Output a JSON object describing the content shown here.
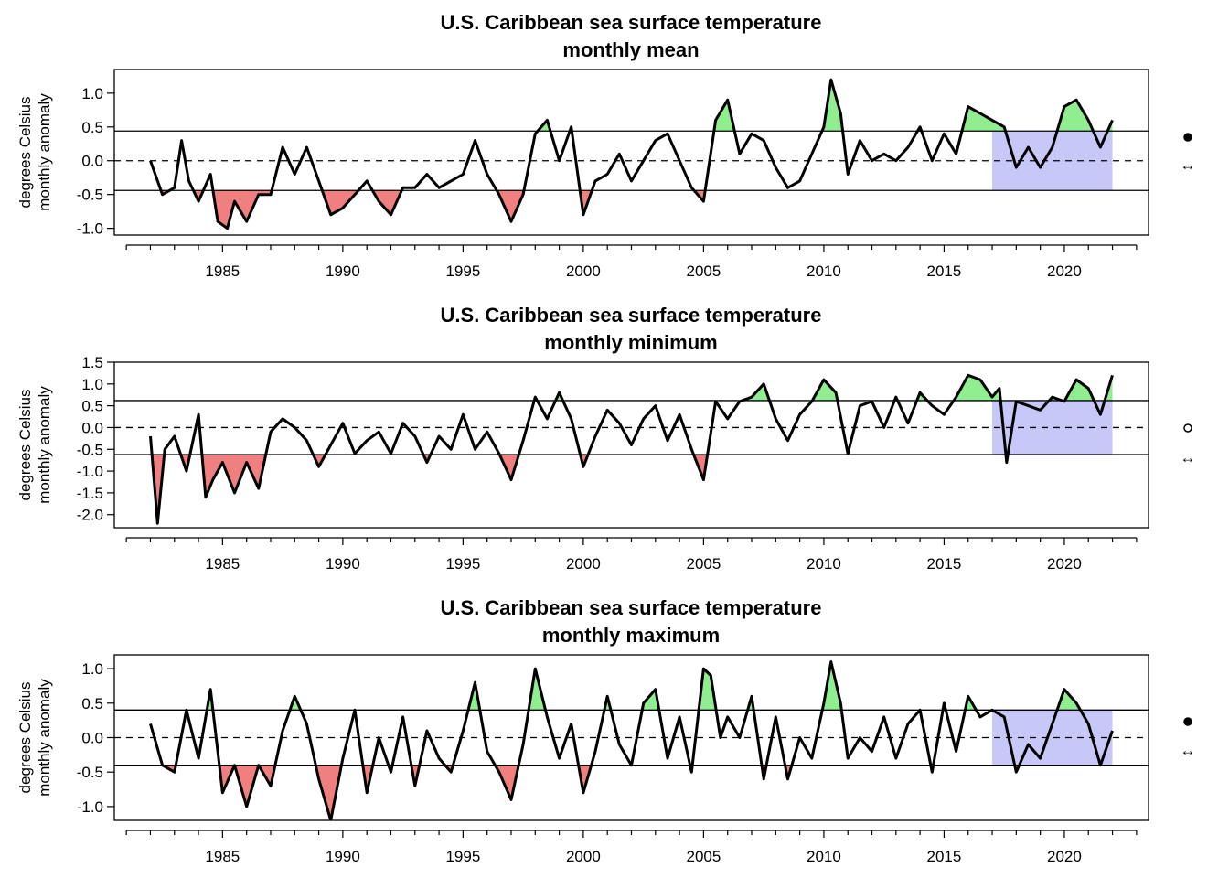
{
  "figure": {
    "panels": [
      {
        "title": "U.S. Caribbean sea surface temperature",
        "subtitle": "monthly mean",
        "ylabel_line1": "degrees Celsius",
        "ylabel_line2": "monthly anomaly",
        "ytick_labels": [
          "1.0",
          "0.5",
          "0.0",
          "-0.5",
          "-1.0"
        ]
      },
      {
        "title": "U.S. Caribbean sea surface temperature",
        "subtitle": "monthly minimum",
        "ylabel_line1": "degrees Celsius",
        "ylabel_line2": "monthly anomaly",
        "ytick_labels": [
          "1.5",
          "1.0",
          "0.5",
          "0.0",
          "-0.5",
          "-1.0",
          "-1.5",
          "-2.0"
        ]
      },
      {
        "title": "U.S. Caribbean sea surface temperature",
        "subtitle": "monthly maximum",
        "ylabel_line1": "degrees Celsius",
        "ylabel_line2": "monthly anomaly",
        "ytick_labels": [
          "1.0",
          "0.5",
          "0.0",
          "-0.5",
          "-1.0"
        ]
      }
    ],
    "xtick_labels": [
      "1985",
      "1990",
      "1995",
      "2000",
      "2005",
      "2010",
      "2015",
      "2020"
    ]
  },
  "colors": {
    "line": "#000000",
    "above_fill": "#90EE90",
    "below_fill": "#F08080",
    "recent_window": "#C8C8F8"
  },
  "chart_data": [
    {
      "type": "line",
      "title": "U.S. Caribbean sea surface temperature",
      "subtitle": "monthly mean",
      "ylabel": "degrees Celsius monthly anomaly",
      "xlim": [
        1980.5,
        2023.5
      ],
      "ylim": [
        -1.1,
        1.35
      ],
      "yticks": [
        1.0,
        0.5,
        0.0,
        -0.5,
        -1.0
      ],
      "xticks": [
        1985,
        1990,
        1995,
        2000,
        2005,
        2010,
        2015,
        2020
      ],
      "reference_lines": {
        "upper": 0.44,
        "mean": 0.0,
        "lower": -0.44
      },
      "recent_window": [
        2017.0,
        2022.0
      ],
      "x": [
        1982.0,
        1982.5,
        1983.0,
        1983.3,
        1983.6,
        1984.0,
        1984.5,
        1984.8,
        1985.2,
        1985.5,
        1986.0,
        1986.5,
        1987.0,
        1987.5,
        1988.0,
        1988.5,
        1989.0,
        1989.5,
        1990.0,
        1990.5,
        1991.0,
        1991.5,
        1992.0,
        1992.5,
        1993.0,
        1993.5,
        1994.0,
        1994.5,
        1995.0,
        1995.5,
        1996.0,
        1996.5,
        1997.0,
        1997.5,
        1998.0,
        1998.5,
        1999.0,
        1999.5,
        2000.0,
        2000.5,
        2001.0,
        2001.5,
        2002.0,
        2002.5,
        2003.0,
        2003.5,
        2004.0,
        2004.5,
        2005.0,
        2005.5,
        2006.0,
        2006.5,
        2007.0,
        2007.5,
        2008.0,
        2008.5,
        2009.0,
        2009.5,
        2010.0,
        2010.3,
        2010.7,
        2011.0,
        2011.5,
        2012.0,
        2012.5,
        2013.0,
        2013.5,
        2014.0,
        2014.5,
        2015.0,
        2015.5,
        2016.0,
        2016.5,
        2017.0,
        2017.5,
        2018.0,
        2018.5,
        2019.0,
        2019.5,
        2020.0,
        2020.5,
        2021.0,
        2021.5,
        2022.0
      ],
      "y": [
        0.0,
        -0.5,
        -0.4,
        0.3,
        -0.3,
        -0.6,
        -0.2,
        -0.9,
        -1.0,
        -0.6,
        -0.9,
        -0.5,
        -0.5,
        0.2,
        -0.2,
        0.2,
        -0.3,
        -0.8,
        -0.7,
        -0.5,
        -0.3,
        -0.6,
        -0.8,
        -0.4,
        -0.4,
        -0.2,
        -0.4,
        -0.3,
        -0.2,
        0.3,
        -0.2,
        -0.5,
        -0.9,
        -0.5,
        0.4,
        0.6,
        0.0,
        0.5,
        -0.8,
        -0.3,
        -0.2,
        0.1,
        -0.3,
        0.0,
        0.3,
        0.4,
        0.0,
        -0.4,
        -0.6,
        0.6,
        0.9,
        0.1,
        0.4,
        0.3,
        -0.1,
        -0.4,
        -0.3,
        0.1,
        0.5,
        1.2,
        0.7,
        -0.2,
        0.3,
        0.0,
        0.1,
        0.0,
        0.2,
        0.5,
        0.0,
        0.4,
        0.1,
        0.8,
        0.7,
        0.6,
        0.5,
        -0.1,
        0.2,
        -0.1,
        0.2,
        0.8,
        0.9,
        0.6,
        0.2,
        0.6
      ]
    },
    {
      "type": "line",
      "title": "U.S. Caribbean sea surface temperature",
      "subtitle": "monthly minimum",
      "ylabel": "degrees Celsius monthly anomaly",
      "xlim": [
        1980.5,
        2023.5
      ],
      "ylim": [
        -2.3,
        1.5
      ],
      "yticks": [
        1.5,
        1.0,
        0.5,
        0.0,
        -0.5,
        -1.0,
        -1.5,
        -2.0
      ],
      "xticks": [
        1985,
        1990,
        1995,
        2000,
        2005,
        2010,
        2015,
        2020
      ],
      "reference_lines": {
        "upper": 0.62,
        "mean": 0.0,
        "lower": -0.62
      },
      "recent_window": [
        2017.0,
        2022.0
      ],
      "x": [
        1982.0,
        1982.3,
        1982.6,
        1983.0,
        1983.5,
        1984.0,
        1984.3,
        1984.6,
        1985.0,
        1985.5,
        1986.0,
        1986.5,
        1987.0,
        1987.5,
        1988.0,
        1988.5,
        1989.0,
        1989.5,
        1990.0,
        1990.5,
        1991.0,
        1991.5,
        1992.0,
        1992.5,
        1993.0,
        1993.5,
        1994.0,
        1994.5,
        1995.0,
        1995.5,
        1996.0,
        1996.5,
        1997.0,
        1997.5,
        1998.0,
        1998.5,
        1999.0,
        1999.5,
        2000.0,
        2000.5,
        2001.0,
        2001.5,
        2002.0,
        2002.5,
        2003.0,
        2003.5,
        2004.0,
        2004.5,
        2005.0,
        2005.5,
        2006.0,
        2006.5,
        2007.0,
        2007.5,
        2008.0,
        2008.5,
        2009.0,
        2009.5,
        2010.0,
        2010.5,
        2011.0,
        2011.5,
        2012.0,
        2012.5,
        2013.0,
        2013.5,
        2014.0,
        2014.5,
        2015.0,
        2015.5,
        2016.0,
        2016.5,
        2017.0,
        2017.3,
        2017.6,
        2018.0,
        2018.5,
        2019.0,
        2019.5,
        2020.0,
        2020.5,
        2021.0,
        2021.5,
        2022.0
      ],
      "y": [
        -0.2,
        -2.2,
        -0.5,
        -0.2,
        -1.0,
        0.3,
        -1.6,
        -1.2,
        -0.8,
        -1.5,
        -0.8,
        -1.4,
        -0.1,
        0.2,
        0.0,
        -0.3,
        -0.9,
        -0.4,
        0.1,
        -0.6,
        -0.3,
        -0.1,
        -0.6,
        0.1,
        -0.2,
        -0.8,
        -0.2,
        -0.5,
        0.3,
        -0.5,
        -0.1,
        -0.6,
        -1.2,
        -0.3,
        0.7,
        0.2,
        0.8,
        0.2,
        -0.9,
        -0.2,
        0.4,
        0.1,
        -0.4,
        0.2,
        0.5,
        -0.3,
        0.3,
        -0.5,
        -1.2,
        0.6,
        0.2,
        0.6,
        0.7,
        1.0,
        0.2,
        -0.3,
        0.3,
        0.6,
        1.1,
        0.8,
        -0.6,
        0.5,
        0.6,
        0.0,
        0.7,
        0.1,
        0.8,
        0.5,
        0.3,
        0.7,
        1.2,
        1.1,
        0.7,
        0.9,
        -0.8,
        0.6,
        0.5,
        0.4,
        0.7,
        0.6,
        1.1,
        0.9,
        0.3,
        1.2
      ]
    },
    {
      "type": "line",
      "title": "U.S. Caribbean sea surface temperature",
      "subtitle": "monthly maximum",
      "ylabel": "degrees Celsius monthly anomaly",
      "xlim": [
        1980.5,
        2023.5
      ],
      "ylim": [
        -1.2,
        1.2
      ],
      "yticks": [
        1.0,
        0.5,
        0.0,
        -0.5,
        -1.0
      ],
      "xticks": [
        1985,
        1990,
        1995,
        2000,
        2005,
        2010,
        2015,
        2020
      ],
      "reference_lines": {
        "upper": 0.4,
        "mean": 0.0,
        "lower": -0.4
      },
      "recent_window": [
        2017.0,
        2022.0
      ],
      "x": [
        1982.0,
        1982.5,
        1983.0,
        1983.5,
        1984.0,
        1984.5,
        1985.0,
        1985.5,
        1986.0,
        1986.5,
        1987.0,
        1987.5,
        1988.0,
        1988.5,
        1989.0,
        1989.5,
        1990.0,
        1990.5,
        1991.0,
        1991.5,
        1992.0,
        1992.5,
        1993.0,
        1993.5,
        1994.0,
        1994.5,
        1995.0,
        1995.5,
        1996.0,
        1996.5,
        1997.0,
        1997.5,
        1998.0,
        1998.5,
        1999.0,
        1999.5,
        2000.0,
        2000.5,
        2001.0,
        2001.5,
        2002.0,
        2002.5,
        2003.0,
        2003.5,
        2004.0,
        2004.5,
        2005.0,
        2005.3,
        2005.7,
        2006.0,
        2006.5,
        2007.0,
        2007.5,
        2008.0,
        2008.5,
        2009.0,
        2009.5,
        2010.0,
        2010.3,
        2010.7,
        2011.0,
        2011.5,
        2012.0,
        2012.5,
        2013.0,
        2013.5,
        2014.0,
        2014.5,
        2015.0,
        2015.5,
        2016.0,
        2016.5,
        2017.0,
        2017.5,
        2018.0,
        2018.5,
        2019.0,
        2019.5,
        2020.0,
        2020.5,
        2021.0,
        2021.5,
        2022.0
      ],
      "y": [
        0.2,
        -0.4,
        -0.5,
        0.4,
        -0.3,
        0.7,
        -0.8,
        -0.4,
        -1.0,
        -0.4,
        -0.7,
        0.1,
        0.6,
        0.2,
        -0.6,
        -1.2,
        -0.3,
        0.4,
        -0.8,
        0.0,
        -0.5,
        0.3,
        -0.7,
        0.1,
        -0.3,
        -0.5,
        0.1,
        0.8,
        -0.2,
        -0.5,
        -0.9,
        -0.1,
        1.0,
        0.3,
        -0.3,
        0.2,
        -0.8,
        -0.2,
        0.6,
        -0.1,
        -0.4,
        0.5,
        0.7,
        -0.3,
        0.3,
        -0.5,
        1.0,
        0.9,
        0.0,
        0.3,
        0.0,
        0.6,
        -0.6,
        0.3,
        -0.6,
        0.0,
        -0.3,
        0.5,
        1.1,
        0.5,
        -0.3,
        0.0,
        -0.2,
        0.3,
        -0.3,
        0.2,
        0.4,
        -0.5,
        0.5,
        -0.2,
        0.6,
        0.3,
        0.4,
        0.3,
        -0.5,
        -0.1,
        -0.3,
        0.2,
        0.7,
        0.5,
        0.2,
        -0.4,
        0.1
      ]
    }
  ]
}
